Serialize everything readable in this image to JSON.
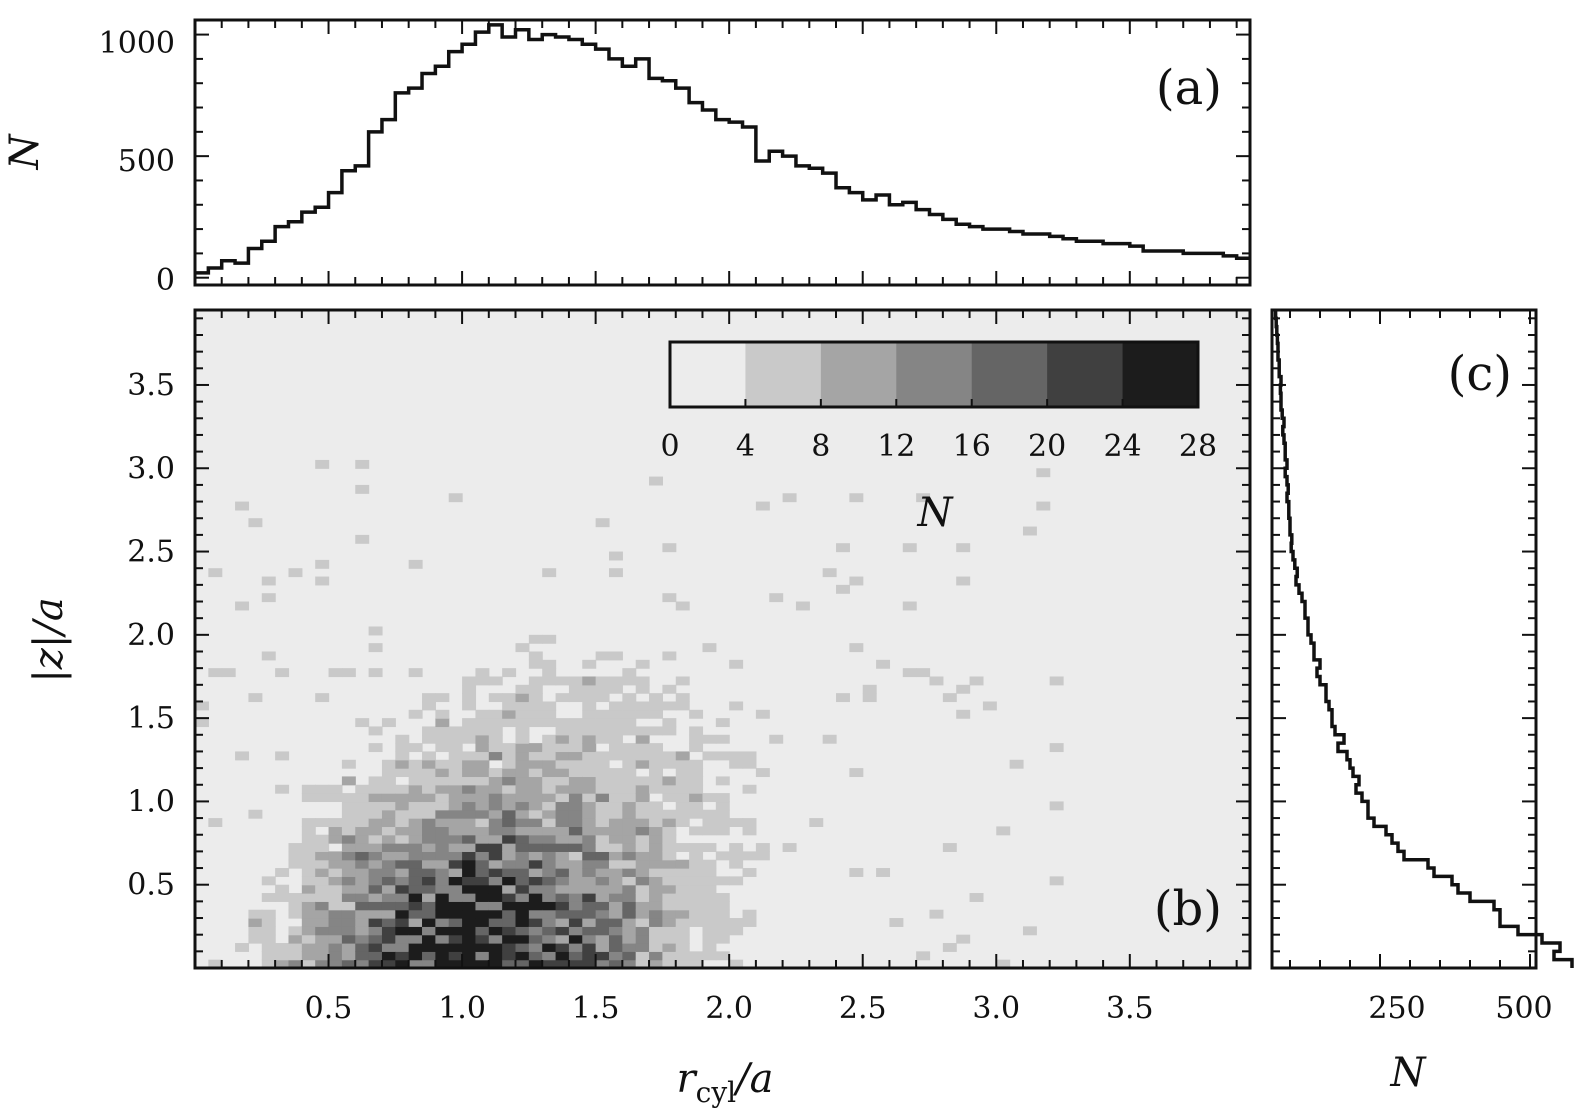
{
  "chart_data": [
    {
      "panel": "(a)",
      "type": "line",
      "ylabel": "N",
      "xlim": [
        0.0,
        3.95
      ],
      "ylim": [
        -30,
        1060
      ],
      "yticks": [
        "0",
        "500",
        "1000"
      ],
      "x": [
        0.0,
        0.05,
        0.1,
        0.15,
        0.2,
        0.25,
        0.3,
        0.35,
        0.4,
        0.45,
        0.5,
        0.55,
        0.6,
        0.65,
        0.7,
        0.75,
        0.8,
        0.85,
        0.9,
        0.95,
        1.0,
        1.05,
        1.1,
        1.15,
        1.2,
        1.25,
        1.3,
        1.35,
        1.4,
        1.45,
        1.5,
        1.55,
        1.6,
        1.65,
        1.7,
        1.75,
        1.8,
        1.85,
        1.9,
        1.95,
        2.0,
        2.05,
        2.1,
        2.15,
        2.2,
        2.25,
        2.3,
        2.35,
        2.4,
        2.45,
        2.5,
        2.55,
        2.6,
        2.65,
        2.7,
        2.75,
        2.8,
        2.85,
        2.9,
        2.95,
        3.0,
        3.05,
        3.1,
        3.15,
        3.2,
        3.25,
        3.3,
        3.35,
        3.4,
        3.45,
        3.5,
        3.55,
        3.6,
        3.65,
        3.7,
        3.75,
        3.8,
        3.85,
        3.9
      ],
      "values": [
        20,
        40,
        70,
        60,
        120,
        150,
        210,
        230,
        270,
        290,
        350,
        440,
        460,
        600,
        650,
        760,
        780,
        840,
        870,
        930,
        960,
        1010,
        1040,
        990,
        1020,
        980,
        1000,
        990,
        980,
        960,
        940,
        900,
        870,
        900,
        820,
        810,
        780,
        720,
        690,
        650,
        640,
        620,
        480,
        520,
        500,
        460,
        450,
        430,
        370,
        350,
        320,
        340,
        300,
        310,
        280,
        260,
        240,
        220,
        210,
        200,
        200,
        190,
        180,
        180,
        170,
        160,
        150,
        150,
        140,
        140,
        130,
        110,
        110,
        110,
        100,
        100,
        100,
        90,
        80
      ]
    },
    {
      "panel": "(b)",
      "type": "heatmap",
      "xlabel": "r_cyl/a",
      "ylabel": "|z|/a",
      "xlim": [
        0.0,
        3.95
      ],
      "ylim": [
        0.0,
        3.95
      ],
      "xticks": [
        "0.5",
        "1.0",
        "1.5",
        "2.0",
        "2.5",
        "3.0",
        "3.5"
      ],
      "yticks": [
        "0.5",
        "1.0",
        "1.5",
        "2.0",
        "2.5",
        "3.0",
        "3.5"
      ],
      "colorbar": {
        "label": "N",
        "levels": [
          0,
          4,
          8,
          12,
          16,
          20,
          24,
          28
        ],
        "tick_labels": [
          "0",
          "4",
          "8",
          "12",
          "16",
          "20",
          "24",
          "28"
        ],
        "colors": [
          "#ececec",
          "#c9c9c9",
          "#a5a5a5",
          "#858585",
          "#656565",
          "#404040",
          "#1c1c1c"
        ],
        "placement": "top-right"
      },
      "density_peak": {
        "r": 1.05,
        "z": 0.25,
        "count": 24
      }
    },
    {
      "panel": "(c)",
      "type": "line",
      "xlabel": "N",
      "xlim": [
        70,
        510
      ],
      "ylim": [
        0.0,
        3.95
      ],
      "xticks": [
        "250",
        "500"
      ],
      "z": [
        0.0,
        0.05,
        0.1,
        0.15,
        0.2,
        0.25,
        0.3,
        0.35,
        0.4,
        0.45,
        0.5,
        0.55,
        0.6,
        0.65,
        0.7,
        0.75,
        0.8,
        0.85,
        0.9,
        0.95,
        1.0,
        1.05,
        1.1,
        1.15,
        1.2,
        1.25,
        1.3,
        1.35,
        1.4,
        1.45,
        1.5,
        1.55,
        1.6,
        1.65,
        1.7,
        1.75,
        1.8,
        1.85,
        1.9,
        1.95,
        2.0,
        2.05,
        2.1,
        2.15,
        2.2,
        2.25,
        2.3,
        2.35,
        2.4,
        2.45,
        2.5,
        2.55,
        2.6,
        2.65,
        2.7,
        2.75,
        2.8,
        2.85,
        2.9,
        2.95,
        3.0,
        3.05,
        3.1,
        3.15,
        3.2,
        3.25,
        3.3,
        3.35,
        3.4,
        3.45,
        3.5,
        3.55,
        3.6,
        3.65,
        3.7,
        3.75,
        3.8,
        3.85,
        3.9
      ],
      "values": [
        500,
        470,
        480,
        450,
        410,
        380,
        380,
        370,
        330,
        310,
        300,
        270,
        260,
        220,
        210,
        200,
        190,
        170,
        160,
        160,
        150,
        140,
        145,
        135,
        130,
        125,
        110,
        120,
        105,
        100,
        100,
        95,
        90,
        90,
        80,
        75,
        80,
        70,
        70,
        65,
        60,
        60,
        55,
        55,
        50,
        45,
        40,
        42,
        38,
        35,
        32,
        33,
        30,
        30,
        28,
        28,
        25,
        27,
        25,
        22,
        25,
        22,
        22,
        20,
        18,
        20,
        17,
        15,
        15,
        14,
        15,
        12,
        12,
        10,
        10,
        9,
        8,
        7,
        6
      ]
    }
  ],
  "panel_labels": {
    "a": "(a)",
    "b": "(b)",
    "c": "(c)"
  },
  "axis_titles": {
    "a_y": "N",
    "b_x_main": "r",
    "b_x_sub": "cyl",
    "b_x_rest": "/a",
    "b_y": "|z|/a",
    "c_x": "N",
    "colorbar": "N"
  }
}
